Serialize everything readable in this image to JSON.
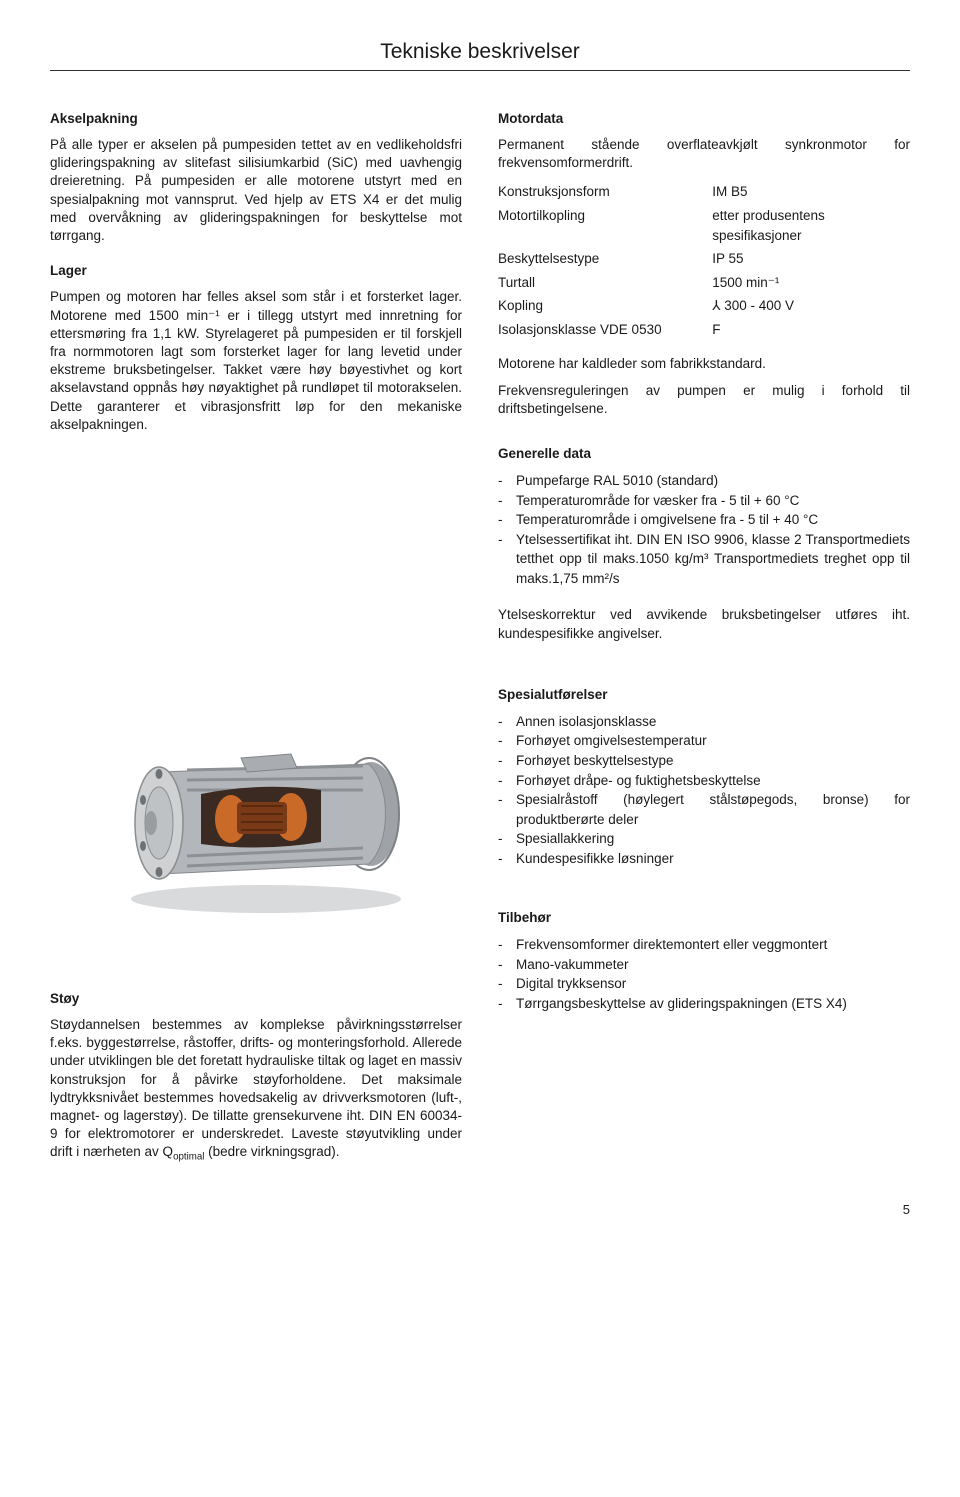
{
  "page_title": "Tekniske beskrivelser",
  "left": {
    "akselpakning_head": "Akselpakning",
    "akselpakning_body": "På alle typer er akselen på pumpesiden tettet av en vedlikeholdsfri glideringspakning av slitefast silisiumkarbid (SiC) med uavhengig dreieretning. På pumpesiden er alle motorene utstyrt med en spesialpakning mot vannsprut. Ved hjelp av ETS X4 er det mulig med overvåkning av glideringspakningen for beskyttelse mot tørrgang.",
    "lager_head": "Lager",
    "lager_body": "Pumpen og motoren har felles aksel som står i et forsterket lager. Motorene med 1500 min⁻¹ er i tillegg utstyrt med innretning for ettersmøring fra 1,1 kW. Styrelageret på pumpesiden er til forskjell fra normmotoren lagt som forsterket lager for lang levetid under ekstreme bruksbetingelser. Takket være høy bøyestivhet og kort akselavstand oppnås høy nøyaktighet på rundløpet til motorakselen. Dette garanterer et vibrasjonsfritt løp for den mekaniske akselpakningen.",
    "stoy_head": "Støy",
    "stoy_body": "Støydannelsen bestemmes av komplekse påvirkningsstørrelser f.eks. byggestørrelse, råstoffer, drifts- og monteringsforhold. Allerede under utviklingen ble det foretatt hydrauliske tiltak og laget en massiv konstruksjon for å påvirke støyforholdene. Det maksimale lydtrykksnivået bestemmes hovedsakelig av drivverksmotoren (luft-, magnet- og lagerstøy). De tillatte grensekurvene iht. DIN EN 60034-9 for elektromotorer er underskredet. Laveste støyutvikling under drift i nærheten av Qoptimal (bedre virkningsgrad)."
  },
  "right": {
    "motordata_head": "Motordata",
    "motordata_intro": "Permanent stående overflateavkjølt synkronmotor for frekvensomformerdrift.",
    "motordata_rows": [
      {
        "label": "Konstruksjonsform",
        "value": "IM B5"
      },
      {
        "label": "Motortilkopling",
        "value": "etter produsentens spesifikasjoner"
      },
      {
        "label": "Beskyttelsestype",
        "value": "IP 55"
      },
      {
        "label": "Turtall",
        "value": "1500 min⁻¹"
      },
      {
        "label": "Kopling",
        "value": "⅄ 300 - 400 V"
      },
      {
        "label": "Isolasjonsklasse VDE 0530",
        "value": "F"
      }
    ],
    "motordata_note1": "Motorene har kaldleder som fabrikkstandard.",
    "motordata_note2": "Frekvensreguleringen av pumpen er mulig i forhold til driftsbetingelsene.",
    "generelle_head": "Generelle data",
    "generelle_items": [
      "Pumpefarge RAL 5010 (standard)",
      "Temperaturområde for væsker fra - 5 til + 60 °C",
      "Temperaturområde i omgivelsene fra - 5 til + 40 °C",
      "Ytelsessertifikat iht. DIN EN ISO 9906, klasse 2 Transportmediets tetthet opp til maks.1050 kg/m³ Transportmediets treghet opp til maks.1,75 mm²/s"
    ],
    "ytelseskorrektur": "Ytelseskorrektur ved avvikende bruksbetingelser utføres iht. kundespesifikke angivelser.",
    "spesial_head": "Spesialutførelser",
    "spesial_items": [
      "Annen isolasjonsklasse",
      "Forhøyet omgivelsestemperatur",
      "Forhøyet beskyttelsestype",
      "Forhøyet dråpe- og fuktighetsbeskyttelse",
      "Spesialråstoff (høylegert stålstøpegods, bronse) for produktberørte deler",
      "Spesiallakkering",
      "Kundespesifikke løsninger"
    ],
    "tilbehor_head": "Tilbehør",
    "tilbehor_items": [
      "Frekvensomformer direktemontert eller veggmontert",
      "Mano-vakummeter",
      "Digital trykksensor",
      "Tørrgangsbeskyttelse av glideringspakningen (ETS X4)"
    ]
  },
  "page_number": "5",
  "image": {
    "description": "motor-cutaway-illustration",
    "motor_body_color": "#b3b6ba",
    "motor_fin_color": "#9fa3a8",
    "rotor_copper": "#c96a29",
    "rotor_core": "#7a3a18",
    "shadow": "#d9dadb",
    "flange": "#cfd1d3"
  }
}
